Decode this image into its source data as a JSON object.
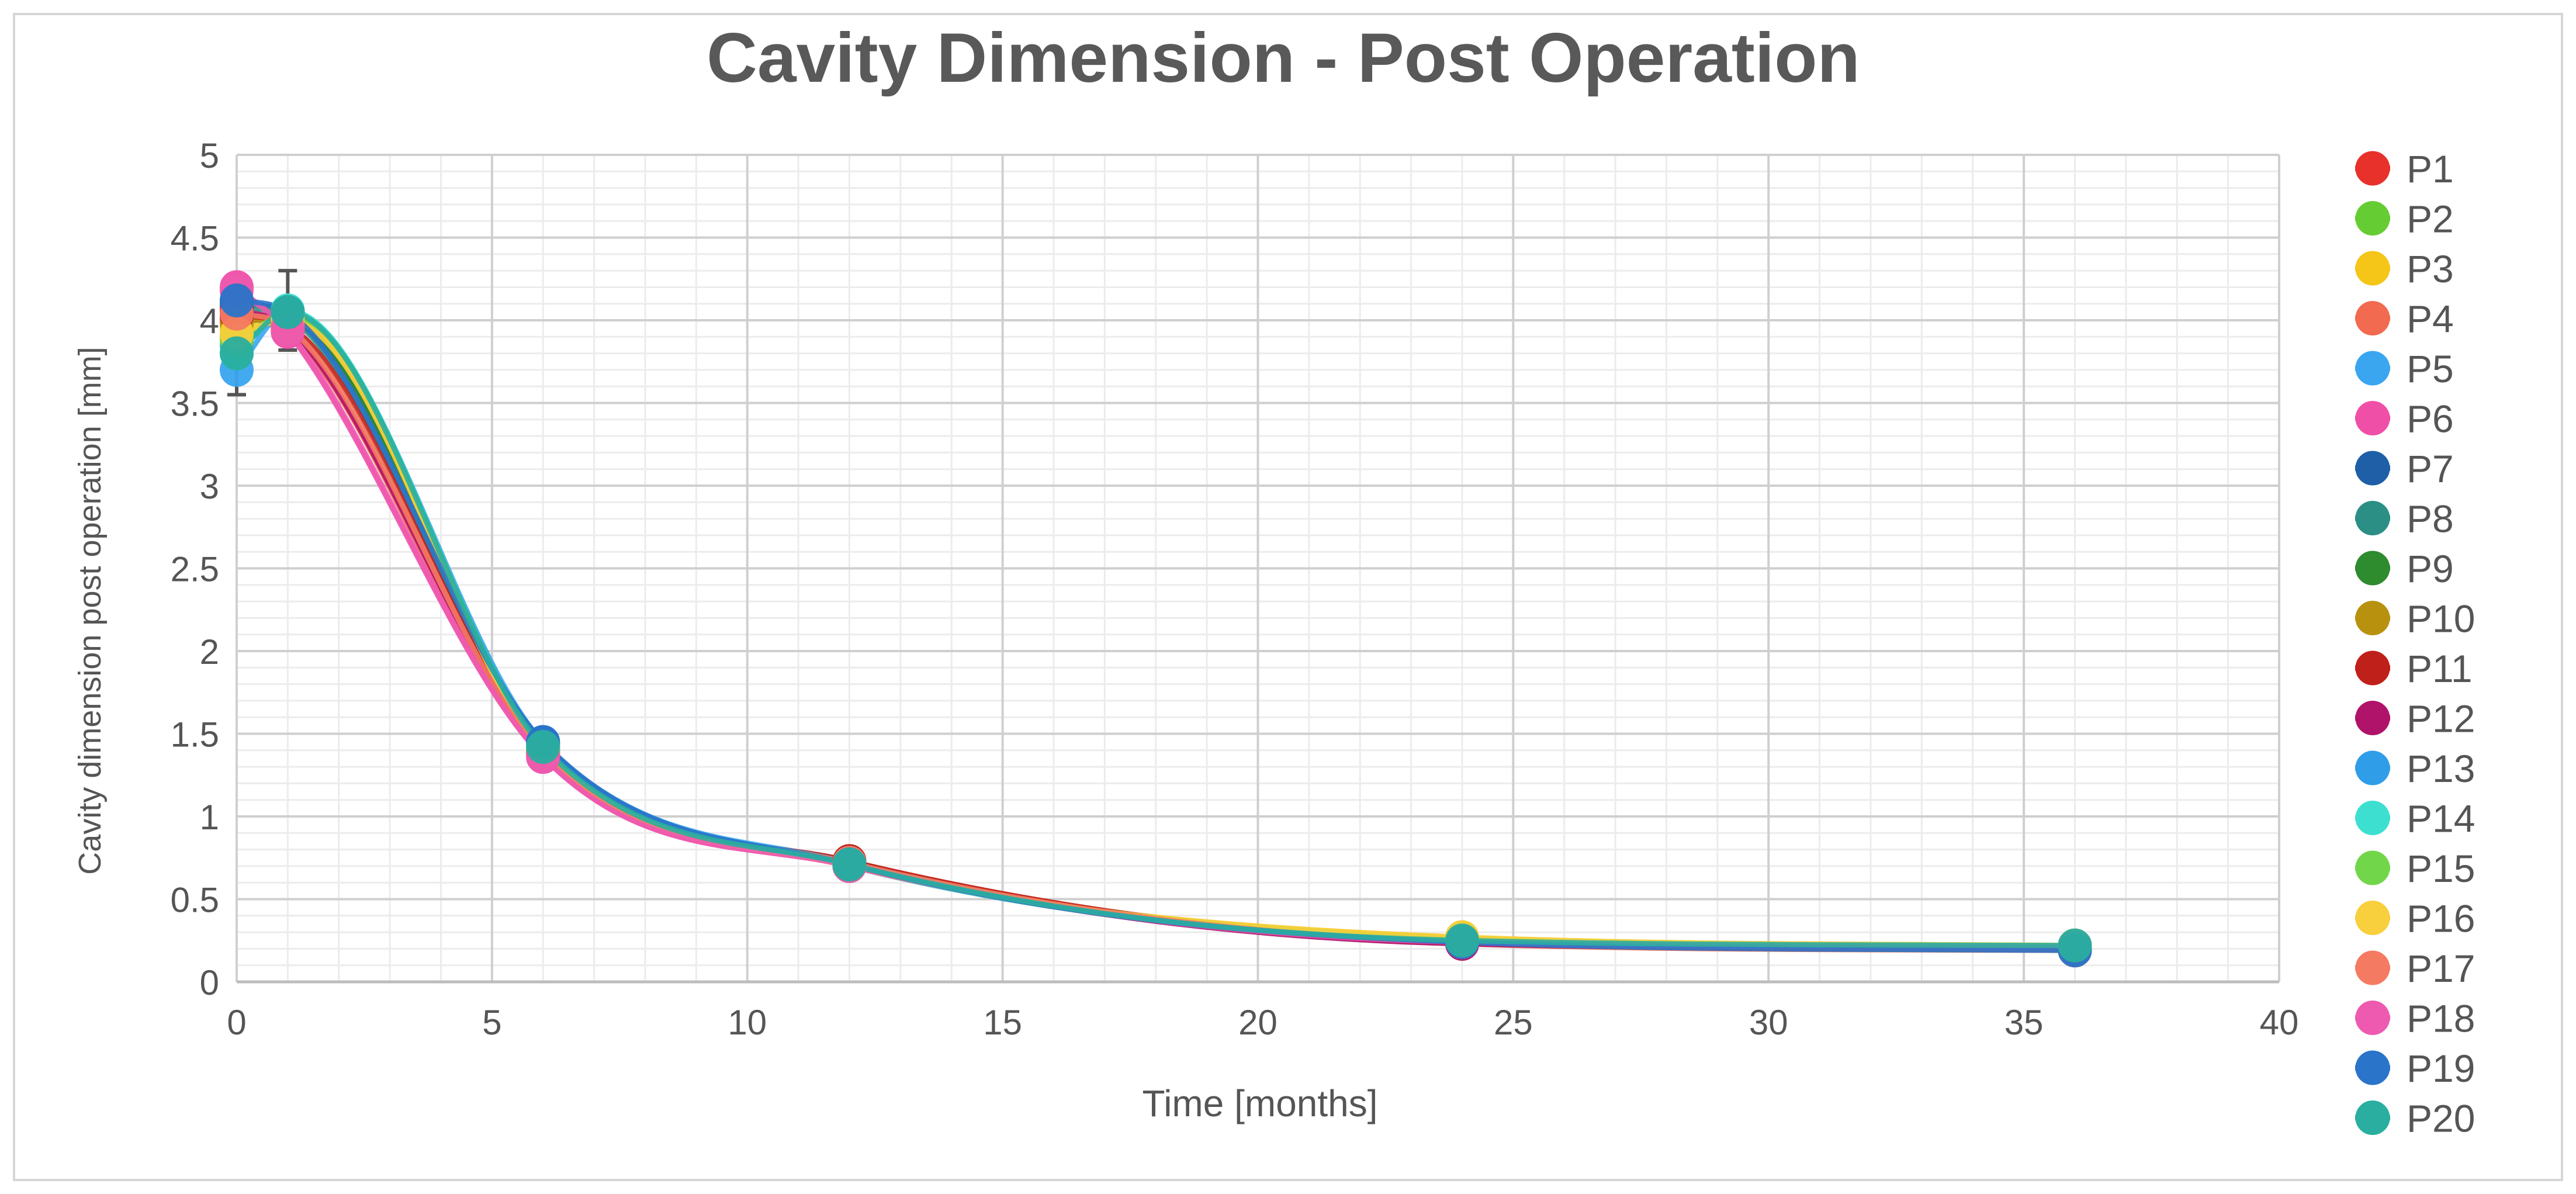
{
  "chart_data": {
    "type": "line",
    "title": "Cavity Dimension - Post Operation",
    "xlabel": "Time [months]",
    "ylabel": "Cavity dimension post operation [mm]",
    "xlim": [
      0,
      40
    ],
    "ylim": [
      0,
      5
    ],
    "x_ticks": [
      "0",
      "5",
      "10",
      "15",
      "20",
      "25",
      "30",
      "35",
      "40"
    ],
    "y_ticks": [
      "0",
      "0.5",
      "1",
      "1.5",
      "2",
      "2.5",
      "3",
      "3.5",
      "4",
      "4.5",
      "5"
    ],
    "grid": true,
    "smooth": true,
    "legend_position": "right",
    "x": [
      0,
      1,
      6,
      12,
      24,
      36
    ],
    "series": [
      {
        "name": "P1",
        "color": "#e8312b",
        "values": [
          4.0,
          4.0,
          1.4,
          0.72,
          0.24,
          0.2
        ]
      },
      {
        "name": "P2",
        "color": "#66cc33",
        "values": [
          3.9,
          4.02,
          1.42,
          0.71,
          0.26,
          0.21
        ]
      },
      {
        "name": "P3",
        "color": "#f5c518",
        "values": [
          3.95,
          3.98,
          1.38,
          0.7,
          0.27,
          0.22
        ]
      },
      {
        "name": "P4",
        "color": "#f26a4f",
        "values": [
          4.05,
          3.95,
          1.37,
          0.73,
          0.23,
          0.19
        ]
      },
      {
        "name": "P5",
        "color": "#3aa6f0",
        "values": [
          3.7,
          4.05,
          1.45,
          0.72,
          0.25,
          0.2
        ]
      },
      {
        "name": "P6",
        "color": "#f04fa8",
        "values": [
          4.2,
          3.93,
          1.36,
          0.7,
          0.24,
          0.21
        ]
      },
      {
        "name": "P7",
        "color": "#1f5fa8",
        "values": [
          4.1,
          4.05,
          1.44,
          0.71,
          0.24,
          0.2
        ]
      },
      {
        "name": "P8",
        "color": "#2b8f86",
        "values": [
          4.08,
          4.02,
          1.41,
          0.7,
          0.25,
          0.21
        ]
      },
      {
        "name": "P9",
        "color": "#2e8b2e",
        "values": [
          4.02,
          4.0,
          1.4,
          0.71,
          0.24,
          0.2
        ]
      },
      {
        "name": "P10",
        "color": "#b8920e",
        "values": [
          3.98,
          4.02,
          1.39,
          0.72,
          0.25,
          0.21
        ]
      },
      {
        "name": "P11",
        "color": "#c0201a",
        "values": [
          4.03,
          3.97,
          1.38,
          0.73,
          0.24,
          0.2
        ]
      },
      {
        "name": "P12",
        "color": "#b0136a",
        "values": [
          4.06,
          3.96,
          1.39,
          0.71,
          0.23,
          0.2
        ]
      },
      {
        "name": "P13",
        "color": "#2f9de8",
        "values": [
          3.85,
          4.04,
          1.43,
          0.72,
          0.25,
          0.21
        ]
      },
      {
        "name": "P14",
        "color": "#3de0d0",
        "values": [
          3.8,
          4.06,
          1.42,
          0.7,
          0.26,
          0.22
        ]
      },
      {
        "name": "P15",
        "color": "#72d64a",
        "values": [
          3.88,
          4.03,
          1.41,
          0.71,
          0.26,
          0.21
        ]
      },
      {
        "name": "P16",
        "color": "#f8cf3c",
        "values": [
          3.92,
          4.0,
          1.4,
          0.7,
          0.27,
          0.22
        ]
      },
      {
        "name": "P17",
        "color": "#f57a62",
        "values": [
          4.04,
          3.96,
          1.38,
          0.72,
          0.24,
          0.2
        ]
      },
      {
        "name": "P18",
        "color": "#ee5aaf",
        "values": [
          4.18,
          3.94,
          1.36,
          0.7,
          0.24,
          0.21
        ]
      },
      {
        "name": "P19",
        "color": "#2a74c9",
        "values": [
          4.12,
          4.05,
          1.45,
          0.71,
          0.24,
          0.19
        ]
      },
      {
        "name": "P20",
        "color": "#2aaea0",
        "values": [
          3.8,
          4.05,
          1.42,
          0.71,
          0.25,
          0.22
        ]
      }
    ]
  }
}
